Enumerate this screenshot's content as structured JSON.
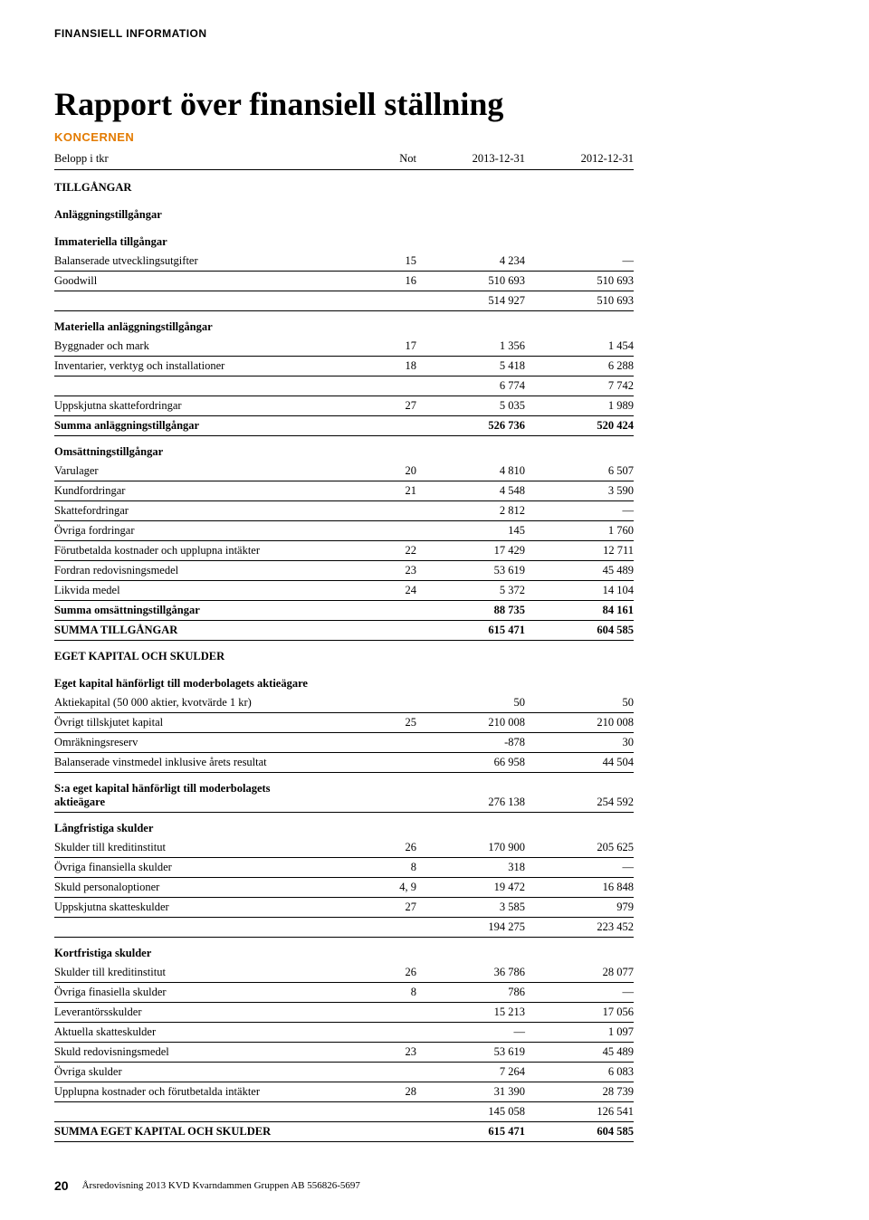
{
  "header_label": "FINANSIELL INFORMATION",
  "title": "Rapport över finansiell ställning",
  "subhead": "KONCERNEN",
  "columns": {
    "label": "Belopp i tkr",
    "not": "Not",
    "y1": "2013-12-31",
    "y2": "2012-12-31"
  },
  "rows": [
    {
      "type": "section",
      "label": "TILLGÅNGAR"
    },
    {
      "type": "section",
      "label": "Anläggningstillgångar"
    },
    {
      "type": "section",
      "label": "Immateriella tillgångar"
    },
    {
      "type": "data",
      "label": "Balanserade utvecklingsutgifter",
      "not": "15",
      "y1": "4 234",
      "y2": "—",
      "line": true
    },
    {
      "type": "data",
      "label": "Goodwill",
      "not": "16",
      "y1": "510 693",
      "y2": "510 693",
      "line": true
    },
    {
      "type": "data",
      "label": "",
      "not": "",
      "y1": "514 927",
      "y2": "510 693",
      "line": true
    },
    {
      "type": "section",
      "label": "Materiella anläggningstillgångar",
      "gap": true
    },
    {
      "type": "data",
      "label": "Byggnader och mark",
      "not": "17",
      "y1": "1 356",
      "y2": "1 454",
      "line": true
    },
    {
      "type": "data",
      "label": "Inventarier, verktyg och installationer",
      "not": "18",
      "y1": "5 418",
      "y2": "6 288",
      "line": true
    },
    {
      "type": "data",
      "label": "",
      "not": "",
      "y1": "6 774",
      "y2": "7 742",
      "line": true
    },
    {
      "type": "data",
      "label": "Uppskjutna skattefordringar",
      "not": "27",
      "y1": "5 035",
      "y2": "1 989",
      "line": true
    },
    {
      "type": "data",
      "label": "Summa anläggningstillgångar",
      "not": "",
      "y1": "526 736",
      "y2": "520 424",
      "bold": true,
      "line": true
    },
    {
      "type": "section",
      "label": "Omsättningstillgångar",
      "gap": true
    },
    {
      "type": "data",
      "label": "Varulager",
      "not": "20",
      "y1": "4 810",
      "y2": "6 507",
      "line": true
    },
    {
      "type": "data",
      "label": "Kundfordringar",
      "not": "21",
      "y1": "4 548",
      "y2": "3 590",
      "line": true
    },
    {
      "type": "data",
      "label": "Skattefordringar",
      "not": "",
      "y1": "2 812",
      "y2": "—",
      "line": true
    },
    {
      "type": "data",
      "label": "Övriga fordringar",
      "not": "",
      "y1": "145",
      "y2": "1 760",
      "line": true
    },
    {
      "type": "data",
      "label": "Förutbetalda kostnader och upplupna intäkter",
      "not": "22",
      "y1": "17 429",
      "y2": "12 711",
      "line": true
    },
    {
      "type": "data",
      "label": "Fordran redovisningsmedel",
      "not": "23",
      "y1": "53 619",
      "y2": "45 489",
      "line": true
    },
    {
      "type": "data",
      "label": "Likvida medel",
      "not": "24",
      "y1": "5 372",
      "y2": "14 104",
      "line": true
    },
    {
      "type": "data",
      "label": "Summa omsättningstillgångar",
      "not": "",
      "y1": "88 735",
      "y2": "84 161",
      "bold": true,
      "line": true
    },
    {
      "type": "data",
      "label": "SUMMA TILLGÅNGAR",
      "not": "",
      "y1": "615 471",
      "y2": "604 585",
      "bold": true,
      "line": true
    },
    {
      "type": "section",
      "label": "EGET KAPITAL OCH SKULDER",
      "gap": true
    },
    {
      "type": "section",
      "label": "Eget kapital hänförligt till moderbolagets aktieägare"
    },
    {
      "type": "data",
      "label": "Aktiekapital (50 000 aktier, kvotvärde 1 kr)",
      "not": "",
      "y1": "50",
      "y2": "50",
      "line": true
    },
    {
      "type": "data",
      "label": "Övrigt tillskjutet kapital",
      "not": "25",
      "y1": "210 008",
      "y2": "210 008",
      "line": true
    },
    {
      "type": "data",
      "label": "Omräkningsreserv",
      "not": "",
      "y1": "-878",
      "y2": "30",
      "line": true
    },
    {
      "type": "data",
      "label": "Balanserade vinstmedel inklusive årets resultat",
      "not": "",
      "y1": "66 958",
      "y2": "44 504",
      "line": true
    },
    {
      "type": "data2",
      "label1": "S:a eget kapital hänförligt till moderbolagets",
      "label2": "aktieägare",
      "not": "",
      "y1": "276 138",
      "y2": "254 592",
      "bold": true,
      "line": true,
      "gap": true
    },
    {
      "type": "section",
      "label": "Långfristiga skulder",
      "gap": true
    },
    {
      "type": "data",
      "label": "Skulder till kreditinstitut",
      "not": "26",
      "y1": "170 900",
      "y2": "205 625",
      "line": true
    },
    {
      "type": "data",
      "label": "Övriga finansiella skulder",
      "not": "8",
      "y1": "318",
      "y2": "—",
      "line": true
    },
    {
      "type": "data",
      "label": "Skuld personaloptioner",
      "not": "4, 9",
      "y1": "19 472",
      "y2": "16 848",
      "line": true
    },
    {
      "type": "data",
      "label": "Uppskjutna skatteskulder",
      "not": "27",
      "y1": "3 585",
      "y2": "979",
      "line": true
    },
    {
      "type": "data",
      "label": "",
      "not": "",
      "y1": "194 275",
      "y2": "223 452",
      "line": true
    },
    {
      "type": "section",
      "label": "Kortfristiga skulder",
      "gap": true
    },
    {
      "type": "data",
      "label": "Skulder till kreditinstitut",
      "not": "26",
      "y1": "36 786",
      "y2": "28 077",
      "line": true
    },
    {
      "type": "data",
      "label": "Övriga finasiella skulder",
      "not": "8",
      "y1": "786",
      "y2": "—",
      "line": true
    },
    {
      "type": "data",
      "label": "Leverantörsskulder",
      "not": "",
      "y1": "15 213",
      "y2": "17 056",
      "line": true
    },
    {
      "type": "data",
      "label": "Aktuella skatteskulder",
      "not": "",
      "y1": "—",
      "y2": "1 097",
      "line": true
    },
    {
      "type": "data",
      "label": "Skuld redovisningsmedel",
      "not": "23",
      "y1": "53 619",
      "y2": "45 489",
      "line": true
    },
    {
      "type": "data",
      "label": "Övriga skulder",
      "not": "",
      "y1": "7 264",
      "y2": "6 083",
      "line": true
    },
    {
      "type": "data",
      "label": "Upplupna kostnader och förutbetalda intäkter",
      "not": "28",
      "y1": "31 390",
      "y2": "28 739",
      "line": true
    },
    {
      "type": "data",
      "label": "",
      "not": "",
      "y1": "145 058",
      "y2": "126 541",
      "line": true
    },
    {
      "type": "data",
      "label": "SUMMA EGET KAPITAL OCH SKULDER",
      "not": "",
      "y1": "615 471",
      "y2": "604 585",
      "bold": true,
      "line": true
    }
  ],
  "footer": {
    "page": "20",
    "text": "Årsredovisning 2013 KVD Kvarndammen Gruppen AB 556826-5697"
  }
}
